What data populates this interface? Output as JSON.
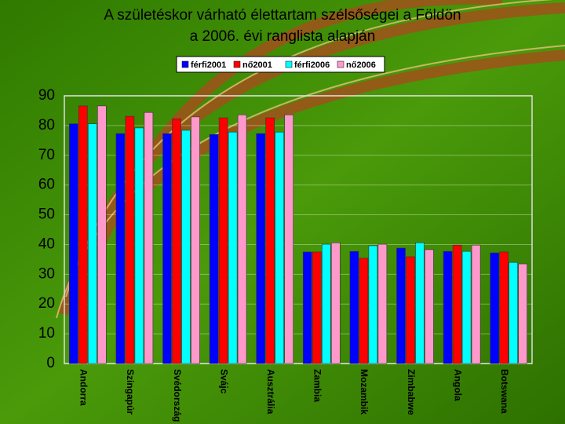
{
  "chart_data": {
    "type": "bar",
    "title": [
      "A születéskor várható élettartam szélsőségei a Földön",
      "a 2006. évi ranglista alapján"
    ],
    "categories": [
      "Andorra",
      "Szingapúr",
      "Svédország",
      "Svájc",
      "Ausztrália",
      "Zambia",
      "Mozambik",
      "Zimbabwe",
      "Angola",
      "Botswana"
    ],
    "series": [
      {
        "name": "férfi2001",
        "color": "#0000ff",
        "values": [
          80.6,
          77.3,
          77.3,
          77.0,
          77.3,
          37.5,
          37.7,
          38.8,
          37.7,
          37.2
        ]
      },
      {
        "name": "nő2001",
        "color": "#ff0000",
        "values": [
          86.6,
          83.1,
          82.3,
          82.6,
          82.6,
          37.5,
          35.4,
          35.9,
          39.8,
          37.5
        ]
      },
      {
        "name": "férfi2006",
        "color": "#00ffff",
        "values": [
          80.6,
          79.2,
          78.4,
          77.8,
          77.8,
          40.1,
          39.6,
          40.6,
          37.7,
          34.0
        ]
      },
      {
        "name": "nő2006",
        "color": "#ff99cc",
        "values": [
          86.6,
          84.4,
          82.9,
          83.6,
          83.6,
          40.6,
          40.1,
          38.3,
          39.8,
          33.5
        ]
      }
    ],
    "ylim": [
      0,
      90
    ],
    "yticks": [
      0,
      10,
      20,
      30,
      40,
      50,
      60,
      70,
      80,
      90
    ],
    "grid": true,
    "legend": "top"
  }
}
